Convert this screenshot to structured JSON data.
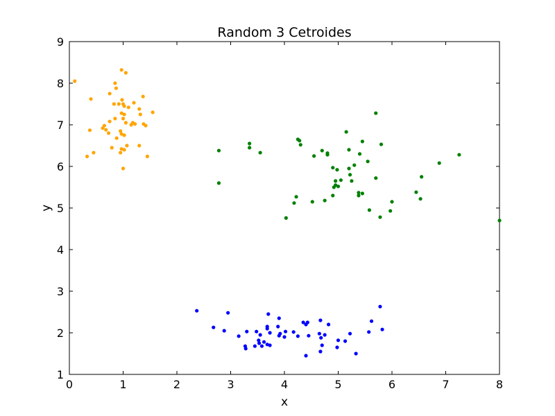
{
  "chart_data": {
    "type": "scatter",
    "title": "Random 3 Cetroides",
    "xlabel": "x",
    "ylabel": "y",
    "xlim": [
      0,
      8
    ],
    "ylim": [
      1,
      9
    ],
    "xticks": [
      0,
      1,
      2,
      3,
      4,
      5,
      6,
      7,
      8
    ],
    "yticks": [
      1,
      2,
      3,
      4,
      5,
      6,
      7,
      8,
      9
    ],
    "grid": false,
    "legend": "none",
    "series": [
      {
        "color": "#ffa500",
        "points": [
          [
            0.1,
            8.05
          ],
          [
            0.97,
            8.32
          ],
          [
            1.05,
            8.25
          ],
          [
            0.85,
            8.0
          ],
          [
            0.87,
            7.88
          ],
          [
            0.75,
            7.75
          ],
          [
            1.37,
            7.68
          ],
          [
            0.4,
            7.62
          ],
          [
            0.98,
            7.6
          ],
          [
            0.83,
            7.5
          ],
          [
            0.92,
            7.5
          ],
          [
            1.0,
            7.5
          ],
          [
            1.2,
            7.53
          ],
          [
            1.02,
            7.45
          ],
          [
            1.1,
            7.42
          ],
          [
            1.3,
            7.38
          ],
          [
            0.97,
            7.28
          ],
          [
            1.02,
            7.25
          ],
          [
            1.32,
            7.25
          ],
          [
            1.55,
            7.3
          ],
          [
            0.85,
            7.15
          ],
          [
            1.0,
            7.15
          ],
          [
            0.75,
            7.08
          ],
          [
            1.05,
            7.05
          ],
          [
            1.18,
            7.05
          ],
          [
            1.22,
            7.02
          ],
          [
            1.15,
            7.0
          ],
          [
            1.38,
            7.02
          ],
          [
            1.42,
            6.98
          ],
          [
            0.65,
            6.98
          ],
          [
            0.62,
            6.92
          ],
          [
            0.68,
            6.88
          ],
          [
            0.38,
            6.87
          ],
          [
            0.95,
            6.85
          ],
          [
            0.73,
            6.8
          ],
          [
            0.97,
            6.78
          ],
          [
            1.02,
            6.75
          ],
          [
            0.88,
            6.68
          ],
          [
            1.07,
            6.5
          ],
          [
            1.3,
            6.5
          ],
          [
            0.79,
            6.45
          ],
          [
            0.97,
            6.42
          ],
          [
            1.02,
            6.4
          ],
          [
            0.45,
            6.33
          ],
          [
            0.95,
            6.33
          ],
          [
            0.33,
            6.24
          ],
          [
            1.45,
            6.24
          ],
          [
            1.0,
            5.95
          ]
        ]
      },
      {
        "color": "#008000",
        "points": [
          [
            5.7,
            7.28
          ],
          [
            5.15,
            6.83
          ],
          [
            4.25,
            6.65
          ],
          [
            4.28,
            6.62
          ],
          [
            5.45,
            6.6
          ],
          [
            3.35,
            6.55
          ],
          [
            4.3,
            6.52
          ],
          [
            5.8,
            6.53
          ],
          [
            3.35,
            6.45
          ],
          [
            2.78,
            6.38
          ],
          [
            4.7,
            6.38
          ],
          [
            5.2,
            6.4
          ],
          [
            3.55,
            6.33
          ],
          [
            4.8,
            6.32
          ],
          [
            4.8,
            6.28
          ],
          [
            4.55,
            6.25
          ],
          [
            5.4,
            6.3
          ],
          [
            7.25,
            6.28
          ],
          [
            5.55,
            6.12
          ],
          [
            6.88,
            6.08
          ],
          [
            5.3,
            6.03
          ],
          [
            4.9,
            5.97
          ],
          [
            5.2,
            5.95
          ],
          [
            4.98,
            5.92
          ],
          [
            5.22,
            5.8
          ],
          [
            6.55,
            5.75
          ],
          [
            5.7,
            5.72
          ],
          [
            5.05,
            5.67
          ],
          [
            4.95,
            5.65
          ],
          [
            5.25,
            5.65
          ],
          [
            2.78,
            5.6
          ],
          [
            4.95,
            5.55
          ],
          [
            4.92,
            5.5
          ],
          [
            5.0,
            5.52
          ],
          [
            6.45,
            5.38
          ],
          [
            5.38,
            5.37
          ],
          [
            5.45,
            5.35
          ],
          [
            5.38,
            5.3
          ],
          [
            4.9,
            5.3
          ],
          [
            4.22,
            5.27
          ],
          [
            6.53,
            5.22
          ],
          [
            4.75,
            5.18
          ],
          [
            4.52,
            5.15
          ],
          [
            6.0,
            5.15
          ],
          [
            4.18,
            5.12
          ],
          [
            5.58,
            4.95
          ],
          [
            5.97,
            4.93
          ],
          [
            5.78,
            4.78
          ],
          [
            4.03,
            4.76
          ],
          [
            8.0,
            4.7
          ]
        ]
      },
      {
        "color": "#0000ff",
        "points": [
          [
            5.78,
            2.63
          ],
          [
            2.37,
            2.53
          ],
          [
            2.95,
            2.48
          ],
          [
            3.7,
            2.45
          ],
          [
            3.9,
            2.35
          ],
          [
            4.67,
            2.3
          ],
          [
            5.62,
            2.28
          ],
          [
            4.35,
            2.25
          ],
          [
            4.43,
            2.25
          ],
          [
            4.4,
            2.2
          ],
          [
            4.82,
            2.2
          ],
          [
            2.68,
            2.13
          ],
          [
            3.68,
            2.15
          ],
          [
            3.88,
            2.15
          ],
          [
            3.68,
            2.1
          ],
          [
            5.82,
            2.08
          ],
          [
            2.88,
            2.05
          ],
          [
            3.3,
            2.03
          ],
          [
            3.48,
            2.03
          ],
          [
            4.02,
            2.03
          ],
          [
            4.17,
            2.02
          ],
          [
            5.57,
            2.02
          ],
          [
            3.73,
            2.0
          ],
          [
            3.92,
            1.98
          ],
          [
            4.65,
            1.98
          ],
          [
            5.22,
            1.98
          ],
          [
            3.55,
            1.95
          ],
          [
            4.75,
            1.95
          ],
          [
            3.9,
            1.93
          ],
          [
            4.45,
            1.93
          ],
          [
            4.25,
            1.92
          ],
          [
            3.15,
            1.92
          ],
          [
            4.0,
            1.9
          ],
          [
            4.68,
            1.88
          ],
          [
            3.52,
            1.82
          ],
          [
            5.0,
            1.82
          ],
          [
            5.13,
            1.8
          ],
          [
            3.62,
            1.78
          ],
          [
            3.53,
            1.75
          ],
          [
            3.68,
            1.72
          ],
          [
            3.73,
            1.7
          ],
          [
            4.7,
            1.7
          ],
          [
            3.45,
            1.68
          ],
          [
            3.58,
            1.68
          ],
          [
            3.27,
            1.68
          ],
          [
            4.98,
            1.65
          ],
          [
            3.28,
            1.62
          ],
          [
            4.67,
            1.55
          ],
          [
            5.33,
            1.5
          ],
          [
            4.4,
            1.45
          ]
        ]
      }
    ]
  }
}
